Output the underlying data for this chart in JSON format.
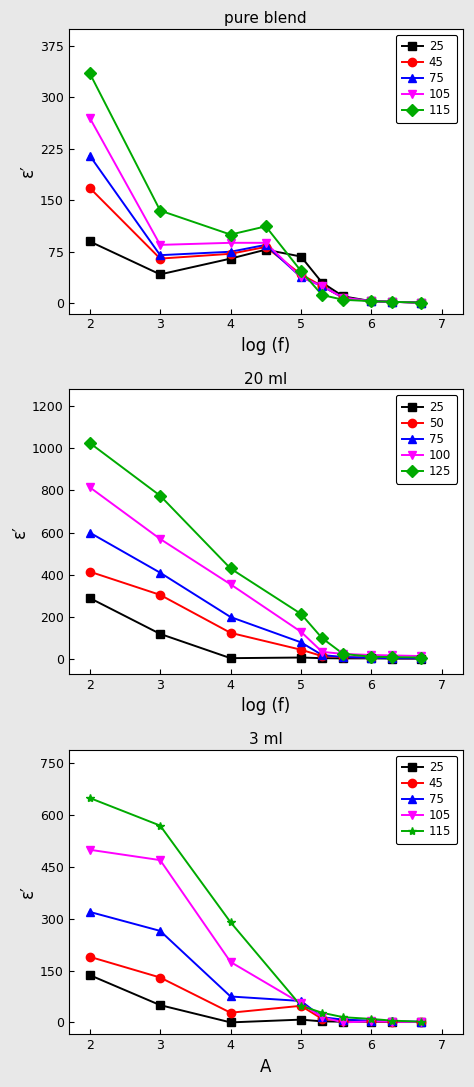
{
  "subplot1": {
    "title": "pure blend",
    "xlabel": "log (f)",
    "ylabel": "ε′",
    "ylim": [
      -15,
      400
    ],
    "yticks": [
      0,
      75,
      150,
      225,
      300,
      375
    ],
    "xlim": [
      1.7,
      7.3
    ],
    "xticks": [
      2,
      3,
      4,
      5,
      6,
      7
    ],
    "series": [
      {
        "label": "25",
        "color": "#000000",
        "marker": "s",
        "x": [
          2,
          3,
          4,
          4.5,
          5,
          5.3,
          5.6,
          6,
          6.3,
          6.7
        ],
        "y": [
          90,
          42,
          65,
          78,
          68,
          30,
          10,
          3,
          2,
          1
        ]
      },
      {
        "label": "45",
        "color": "#ff0000",
        "marker": "o",
        "x": [
          2,
          3,
          4,
          4.5,
          5,
          5.3,
          5.6,
          6,
          6.3,
          6.7
        ],
        "y": [
          168,
          65,
          72,
          82,
          42,
          25,
          8,
          3,
          2,
          1
        ]
      },
      {
        "label": "75",
        "color": "#0000ff",
        "marker": "^",
        "x": [
          2,
          3,
          4,
          4.5,
          5,
          5.3,
          5.6,
          6,
          6.3,
          6.7
        ],
        "y": [
          215,
          70,
          75,
          85,
          38,
          25,
          8,
          3,
          2,
          1
        ]
      },
      {
        "label": "105",
        "color": "#ff00ff",
        "marker": "v",
        "x": [
          2,
          3,
          4,
          4.5,
          5,
          5.3,
          5.6,
          6,
          6.3,
          6.7
        ],
        "y": [
          270,
          85,
          88,
          88,
          38,
          25,
          8,
          3,
          2,
          1
        ]
      },
      {
        "label": "115",
        "color": "#00aa00",
        "marker": "D",
        "x": [
          2,
          3,
          4,
          4.5,
          5,
          5.3,
          5.6,
          6,
          6.3,
          6.7
        ],
        "y": [
          335,
          135,
          100,
          112,
          47,
          12,
          5,
          3,
          2,
          1
        ]
      }
    ]
  },
  "subplot2": {
    "title": "20 ml",
    "xlabel": "log (f)",
    "ylabel": "ε′",
    "ylim": [
      -70,
      1280
    ],
    "yticks": [
      0,
      200,
      400,
      600,
      800,
      1000,
      1200
    ],
    "xlim": [
      1.7,
      7.3
    ],
    "xticks": [
      2,
      3,
      4,
      5,
      6,
      7
    ],
    "series": [
      {
        "label": "25",
        "color": "#000000",
        "marker": "s",
        "x": [
          2,
          3,
          4,
          5,
          5.3,
          5.6,
          6,
          6.3,
          6.7
        ],
        "y": [
          290,
          120,
          5,
          8,
          5,
          4,
          4,
          3,
          3
        ]
      },
      {
        "label": "50",
        "color": "#ff0000",
        "marker": "o",
        "x": [
          2,
          3,
          4,
          5,
          5.3,
          5.6,
          6,
          6.3,
          6.7
        ],
        "y": [
          415,
          305,
          125,
          45,
          15,
          10,
          7,
          5,
          4
        ]
      },
      {
        "label": "75",
        "color": "#0000ff",
        "marker": "^",
        "x": [
          2,
          3,
          4,
          5,
          5.3,
          5.6,
          6,
          6.3,
          6.7
        ],
        "y": [
          600,
          410,
          200,
          80,
          20,
          10,
          7,
          5,
          4
        ]
      },
      {
        "label": "100",
        "color": "#ff00ff",
        "marker": "v",
        "x": [
          2,
          3,
          4,
          5,
          5.3,
          5.6,
          6,
          6.3,
          6.7
        ],
        "y": [
          815,
          570,
          355,
          130,
          35,
          25,
          20,
          18,
          15
        ]
      },
      {
        "label": "125",
        "color": "#00aa00",
        "marker": "D",
        "x": [
          2,
          3,
          4,
          5,
          5.3,
          5.6,
          6,
          6.3,
          6.7
        ],
        "y": [
          1025,
          775,
          430,
          215,
          100,
          25,
          12,
          10,
          8
        ]
      }
    ]
  },
  "subplot3": {
    "title": "3 ml",
    "xlabel": "A",
    "ylabel": "ε′",
    "ylim": [
      -35,
      790
    ],
    "yticks": [
      0,
      150,
      300,
      450,
      600,
      750
    ],
    "xlim": [
      1.7,
      7.3
    ],
    "xticks": [
      2,
      3,
      4,
      5,
      6,
      7
    ],
    "series": [
      {
        "label": "25",
        "color": "#000000",
        "marker": "s",
        "x": [
          2,
          3,
          4,
          5,
          5.3,
          5.6,
          6,
          6.3,
          6.7
        ],
        "y": [
          137,
          50,
          0,
          8,
          3,
          2,
          2,
          1,
          1
        ]
      },
      {
        "label": "45",
        "color": "#ff0000",
        "marker": "o",
        "x": [
          2,
          3,
          4,
          5,
          5.3,
          5.6,
          6,
          6.3,
          6.7
        ],
        "y": [
          190,
          130,
          28,
          48,
          10,
          5,
          3,
          2,
          1
        ]
      },
      {
        "label": "75",
        "color": "#0000ff",
        "marker": "^",
        "x": [
          2,
          3,
          4,
          5,
          5.3,
          5.6,
          6,
          6.3,
          6.7
        ],
        "y": [
          320,
          265,
          75,
          62,
          15,
          8,
          5,
          3,
          2
        ]
      },
      {
        "label": "105",
        "color": "#ff00ff",
        "marker": "v",
        "x": [
          2,
          3,
          4,
          5,
          5.3,
          5.6,
          6,
          6.3,
          6.7
        ],
        "y": [
          500,
          470,
          175,
          55,
          15,
          0,
          3,
          2,
          1
        ]
      },
      {
        "label": "115",
        "color": "#00aa00",
        "marker": "*",
        "x": [
          2,
          3,
          4,
          5,
          5.3,
          5.6,
          6,
          6.3,
          6.7
        ],
        "y": [
          650,
          570,
          290,
          48,
          28,
          15,
          10,
          5,
          2
        ]
      }
    ]
  },
  "fig_facecolor": "#e8e8e8",
  "axes_facecolor": "#ffffff",
  "markersize": 6,
  "linewidth": 1.4,
  "legend_fontsize": 8.5,
  "tick_fontsize": 9,
  "label_fontsize": 12,
  "title_fontsize": 11
}
